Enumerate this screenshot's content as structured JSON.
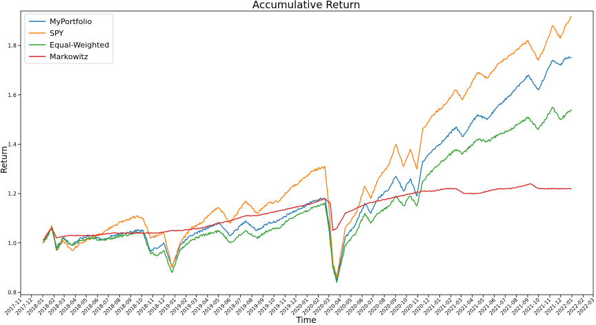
{
  "chart_data": {
    "type": "line",
    "title": "Accumulative Return",
    "xlabel": "Time",
    "ylabel": "Return",
    "ylim": [
      0.79,
      1.94
    ],
    "xlim": [
      "2017-11-01",
      "2022-03-01"
    ],
    "yticks": [
      0.8,
      1.0,
      1.2,
      1.4,
      1.6,
      1.8
    ],
    "xticks": [
      "2017-11",
      "2017-12",
      "2018-01",
      "2018-02",
      "2018-03",
      "2018-04",
      "2018-05",
      "2018-06",
      "2018-07",
      "2018-08",
      "2018-09",
      "2018-10",
      "2018-11",
      "2018-12",
      "2019-01",
      "2019-02",
      "2019-03",
      "2019-04",
      "2019-05",
      "2019-06",
      "2019-07",
      "2019-08",
      "2019-09",
      "2019-10",
      "2019-11",
      "2019-12",
      "2020-01",
      "2020-02",
      "2020-03",
      "2020-04",
      "2020-05",
      "2020-06",
      "2020-07",
      "2020-08",
      "2020-09",
      "2020-10",
      "2020-11",
      "2020-12",
      "2021-01",
      "2021-02",
      "2021-03",
      "2021-04",
      "2021-05",
      "2021-06",
      "2021-07",
      "2021-08",
      "2021-09",
      "2021-10",
      "2021-11",
      "2021-12",
      "2022-01",
      "2022-02",
      "2022-03"
    ],
    "grid": false,
    "legend": "top-left",
    "series": [
      {
        "name": "MyPortfolio",
        "color": "#1f77b4",
        "points": [
          [
            "2018-01-02",
            1.0
          ],
          [
            "2018-01-15",
            1.03
          ],
          [
            "2018-01-26",
            1.07
          ],
          [
            "2018-02-08",
            0.98
          ],
          [
            "2018-02-26",
            1.02
          ],
          [
            "2018-03-22",
            0.99
          ],
          [
            "2018-04-16",
            1.02
          ],
          [
            "2018-05-15",
            1.03
          ],
          [
            "2018-06-15",
            1.01
          ],
          [
            "2018-07-15",
            1.03
          ],
          [
            "2018-08-15",
            1.04
          ],
          [
            "2018-09-20",
            1.05
          ],
          [
            "2018-10-05",
            1.05
          ],
          [
            "2018-10-25",
            0.97
          ],
          [
            "2018-11-15",
            0.98
          ],
          [
            "2018-12-01",
            1.0
          ],
          [
            "2018-12-24",
            0.9
          ],
          [
            "2019-01-15",
            0.99
          ],
          [
            "2019-02-15",
            1.03
          ],
          [
            "2019-03-15",
            1.05
          ],
          [
            "2019-04-15",
            1.07
          ],
          [
            "2019-05-03",
            1.08
          ],
          [
            "2019-06-03",
            1.03
          ],
          [
            "2019-07-15",
            1.09
          ],
          [
            "2019-08-15",
            1.05
          ],
          [
            "2019-09-15",
            1.08
          ],
          [
            "2019-10-15",
            1.09
          ],
          [
            "2019-11-15",
            1.12
          ],
          [
            "2019-12-15",
            1.14
          ],
          [
            "2020-01-15",
            1.17
          ],
          [
            "2020-02-19",
            1.18
          ],
          [
            "2020-03-01",
            1.08
          ],
          [
            "2020-03-12",
            0.92
          ],
          [
            "2020-03-23",
            0.85
          ],
          [
            "2020-04-15",
            1.02
          ],
          [
            "2020-05-15",
            1.08
          ],
          [
            "2020-06-08",
            1.16
          ],
          [
            "2020-06-25",
            1.12
          ],
          [
            "2020-07-15",
            1.18
          ],
          [
            "2020-08-15",
            1.22
          ],
          [
            "2020-09-02",
            1.27
          ],
          [
            "2020-09-23",
            1.21
          ],
          [
            "2020-10-12",
            1.26
          ],
          [
            "2020-10-30",
            1.19
          ],
          [
            "2020-11-15",
            1.33
          ],
          [
            "2020-12-15",
            1.38
          ],
          [
            "2021-01-15",
            1.42
          ],
          [
            "2021-02-15",
            1.47
          ],
          [
            "2021-03-05",
            1.43
          ],
          [
            "2021-04-15",
            1.52
          ],
          [
            "2021-05-12",
            1.5
          ],
          [
            "2021-06-15",
            1.56
          ],
          [
            "2021-07-15",
            1.6
          ],
          [
            "2021-08-15",
            1.65
          ],
          [
            "2021-09-02",
            1.68
          ],
          [
            "2021-09-30",
            1.62
          ],
          [
            "2021-10-20",
            1.68
          ],
          [
            "2021-11-08",
            1.74
          ],
          [
            "2021-11-30",
            1.72
          ],
          [
            "2021-12-15",
            1.75
          ],
          [
            "2021-12-31",
            1.75
          ]
        ]
      },
      {
        "name": "SPY",
        "color": "#ff7f0e",
        "points": [
          [
            "2018-01-02",
            1.0
          ],
          [
            "2018-01-15",
            1.04
          ],
          [
            "2018-01-26",
            1.07
          ],
          [
            "2018-02-08",
            0.97
          ],
          [
            "2018-02-26",
            1.01
          ],
          [
            "2018-03-22",
            0.97
          ],
          [
            "2018-04-16",
            1.0
          ],
          [
            "2018-05-15",
            1.02
          ],
          [
            "2018-06-15",
            1.04
          ],
          [
            "2018-07-15",
            1.07
          ],
          [
            "2018-08-15",
            1.09
          ],
          [
            "2018-09-20",
            1.11
          ],
          [
            "2018-10-05",
            1.1
          ],
          [
            "2018-10-25",
            1.02
          ],
          [
            "2018-11-15",
            1.03
          ],
          [
            "2018-12-01",
            1.04
          ],
          [
            "2018-12-24",
            0.9
          ],
          [
            "2019-01-15",
            1.0
          ],
          [
            "2019-02-15",
            1.06
          ],
          [
            "2019-03-15",
            1.08
          ],
          [
            "2019-04-15",
            1.13
          ],
          [
            "2019-05-03",
            1.14
          ],
          [
            "2019-06-03",
            1.08
          ],
          [
            "2019-07-15",
            1.17
          ],
          [
            "2019-08-15",
            1.12
          ],
          [
            "2019-09-15",
            1.16
          ],
          [
            "2019-10-15",
            1.17
          ],
          [
            "2019-11-15",
            1.22
          ],
          [
            "2019-12-15",
            1.25
          ],
          [
            "2020-01-15",
            1.29
          ],
          [
            "2020-02-19",
            1.31
          ],
          [
            "2020-03-01",
            1.15
          ],
          [
            "2020-03-12",
            0.92
          ],
          [
            "2020-03-23",
            0.86
          ],
          [
            "2020-04-15",
            1.06
          ],
          [
            "2020-05-15",
            1.12
          ],
          [
            "2020-06-08",
            1.23
          ],
          [
            "2020-06-25",
            1.18
          ],
          [
            "2020-07-15",
            1.26
          ],
          [
            "2020-08-15",
            1.32
          ],
          [
            "2020-09-02",
            1.4
          ],
          [
            "2020-09-23",
            1.31
          ],
          [
            "2020-10-12",
            1.38
          ],
          [
            "2020-10-30",
            1.3
          ],
          [
            "2020-11-15",
            1.46
          ],
          [
            "2020-12-15",
            1.52
          ],
          [
            "2021-01-15",
            1.56
          ],
          [
            "2021-02-15",
            1.62
          ],
          [
            "2021-03-05",
            1.58
          ],
          [
            "2021-04-15",
            1.69
          ],
          [
            "2021-05-12",
            1.67
          ],
          [
            "2021-06-15",
            1.73
          ],
          [
            "2021-07-15",
            1.76
          ],
          [
            "2021-08-15",
            1.8
          ],
          [
            "2021-09-02",
            1.82
          ],
          [
            "2021-09-30",
            1.74
          ],
          [
            "2021-10-20",
            1.8
          ],
          [
            "2021-11-08",
            1.88
          ],
          [
            "2021-11-30",
            1.83
          ],
          [
            "2021-12-15",
            1.88
          ],
          [
            "2021-12-31",
            1.92
          ]
        ]
      },
      {
        "name": "Equal-Weighted",
        "color": "#2ca02c",
        "points": [
          [
            "2018-01-02",
            1.0
          ],
          [
            "2018-01-15",
            1.03
          ],
          [
            "2018-01-26",
            1.06
          ],
          [
            "2018-02-08",
            0.97
          ],
          [
            "2018-02-26",
            1.02
          ],
          [
            "2018-03-22",
            0.99
          ],
          [
            "2018-04-16",
            1.01
          ],
          [
            "2018-05-15",
            1.02
          ],
          [
            "2018-06-15",
            1.01
          ],
          [
            "2018-07-15",
            1.02
          ],
          [
            "2018-08-15",
            1.03
          ],
          [
            "2018-09-20",
            1.04
          ],
          [
            "2018-10-05",
            1.04
          ],
          [
            "2018-10-25",
            0.96
          ],
          [
            "2018-11-15",
            0.95
          ],
          [
            "2018-12-01",
            0.97
          ],
          [
            "2018-12-24",
            0.88
          ],
          [
            "2019-01-15",
            0.97
          ],
          [
            "2019-02-15",
            1.01
          ],
          [
            "2019-03-15",
            1.03
          ],
          [
            "2019-04-15",
            1.04
          ],
          [
            "2019-05-03",
            1.05
          ],
          [
            "2019-06-03",
            1.0
          ],
          [
            "2019-07-15",
            1.05
          ],
          [
            "2019-08-15",
            1.02
          ],
          [
            "2019-09-15",
            1.05
          ],
          [
            "2019-10-15",
            1.06
          ],
          [
            "2019-11-15",
            1.1
          ],
          [
            "2019-12-15",
            1.12
          ],
          [
            "2020-01-15",
            1.14
          ],
          [
            "2020-02-19",
            1.16
          ],
          [
            "2020-03-01",
            1.06
          ],
          [
            "2020-03-12",
            0.9
          ],
          [
            "2020-03-23",
            0.84
          ],
          [
            "2020-04-15",
            0.99
          ],
          [
            "2020-05-15",
            1.04
          ],
          [
            "2020-06-08",
            1.12
          ],
          [
            "2020-06-25",
            1.08
          ],
          [
            "2020-07-15",
            1.12
          ],
          [
            "2020-08-15",
            1.15
          ],
          [
            "2020-09-02",
            1.19
          ],
          [
            "2020-09-23",
            1.15
          ],
          [
            "2020-10-12",
            1.19
          ],
          [
            "2020-10-30",
            1.15
          ],
          [
            "2020-11-15",
            1.25
          ],
          [
            "2020-12-15",
            1.3
          ],
          [
            "2021-01-15",
            1.34
          ],
          [
            "2021-02-15",
            1.38
          ],
          [
            "2021-03-05",
            1.36
          ],
          [
            "2021-04-15",
            1.42
          ],
          [
            "2021-05-12",
            1.41
          ],
          [
            "2021-06-15",
            1.44
          ],
          [
            "2021-07-15",
            1.46
          ],
          [
            "2021-08-15",
            1.49
          ],
          [
            "2021-09-02",
            1.51
          ],
          [
            "2021-09-30",
            1.46
          ],
          [
            "2021-10-20",
            1.5
          ],
          [
            "2021-11-08",
            1.55
          ],
          [
            "2021-11-30",
            1.5
          ],
          [
            "2021-12-15",
            1.52
          ],
          [
            "2021-12-31",
            1.54
          ]
        ]
      },
      {
        "name": "Markowitz",
        "color": "#d62728",
        "points": [
          [
            "2018-01-02",
            1.01
          ],
          [
            "2018-01-15",
            1.04
          ],
          [
            "2018-01-26",
            1.06
          ],
          [
            "2018-02-08",
            1.02
          ],
          [
            "2018-03-15",
            1.03
          ],
          [
            "2018-05-15",
            1.03
          ],
          [
            "2018-07-15",
            1.04
          ],
          [
            "2018-09-15",
            1.04
          ],
          [
            "2018-11-15",
            1.04
          ],
          [
            "2018-12-24",
            1.05
          ],
          [
            "2019-01-15",
            1.05
          ],
          [
            "2019-03-15",
            1.06
          ],
          [
            "2019-05-03",
            1.08
          ],
          [
            "2019-06-03",
            1.09
          ],
          [
            "2019-07-15",
            1.11
          ],
          [
            "2019-08-15",
            1.11
          ],
          [
            "2019-09-15",
            1.12
          ],
          [
            "2019-10-15",
            1.13
          ],
          [
            "2019-11-15",
            1.14
          ],
          [
            "2019-12-15",
            1.15
          ],
          [
            "2020-01-15",
            1.16
          ],
          [
            "2020-02-19",
            1.18
          ],
          [
            "2020-03-05",
            1.16
          ],
          [
            "2020-03-12",
            1.05
          ],
          [
            "2020-03-23",
            1.06
          ],
          [
            "2020-04-15",
            1.12
          ],
          [
            "2020-05-15",
            1.14
          ],
          [
            "2020-06-15",
            1.16
          ],
          [
            "2020-07-15",
            1.17
          ],
          [
            "2020-08-15",
            1.18
          ],
          [
            "2020-09-15",
            1.19
          ],
          [
            "2020-10-15",
            1.2
          ],
          [
            "2020-11-15",
            1.21
          ],
          [
            "2020-12-15",
            1.21
          ],
          [
            "2021-01-15",
            1.22
          ],
          [
            "2021-02-15",
            1.22
          ],
          [
            "2021-03-10",
            1.2
          ],
          [
            "2021-04-15",
            1.2
          ],
          [
            "2021-05-15",
            1.21
          ],
          [
            "2021-06-15",
            1.22
          ],
          [
            "2021-07-15",
            1.22
          ],
          [
            "2021-08-15",
            1.23
          ],
          [
            "2021-09-08",
            1.24
          ],
          [
            "2021-10-01",
            1.22
          ],
          [
            "2021-11-15",
            1.22
          ],
          [
            "2021-12-31",
            1.22
          ]
        ]
      }
    ]
  }
}
